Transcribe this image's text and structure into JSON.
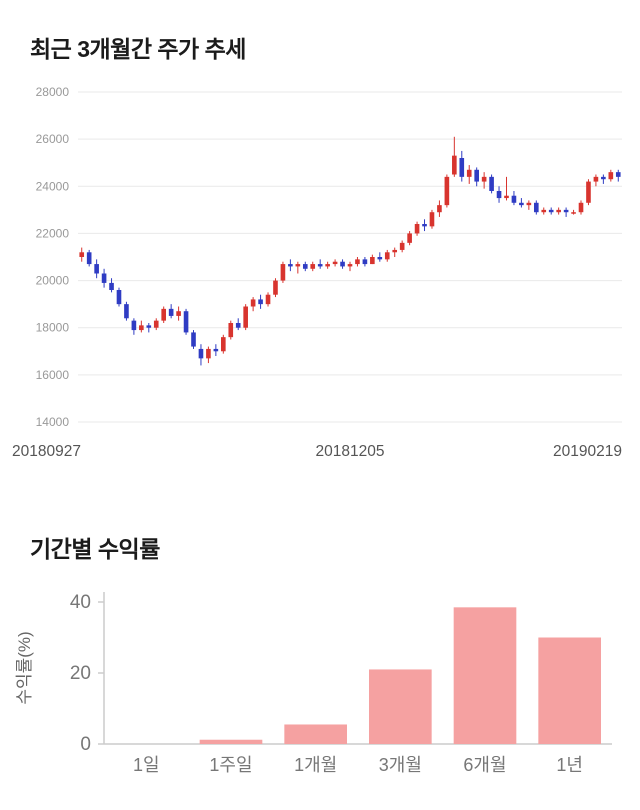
{
  "page": {
    "section1_title": "최근 3개월간 주가 추세",
    "section2_title": "기간별 수익률"
  },
  "chart_data": [
    {
      "type": "candlestick",
      "title": "최근 3개월간 주가 추세",
      "ylim": [
        14000,
        28000
      ],
      "yticks": [
        14000,
        16000,
        18000,
        20000,
        22000,
        24000,
        26000,
        28000
      ],
      "xtick_labels": [
        "20180927",
        "20181205",
        "20190219"
      ],
      "up_color": "#d8342e",
      "down_color": "#2f3cc3",
      "grid_color": "#e9e9e9",
      "ytick_label_color": "#999999",
      "xtick_label_color": "#555555",
      "candles": [
        [
          21000,
          21400,
          20800,
          21200
        ],
        [
          21200,
          21300,
          20600,
          20700
        ],
        [
          20700,
          20900,
          20100,
          20300
        ],
        [
          20300,
          20500,
          19700,
          19900
        ],
        [
          19900,
          20100,
          19500,
          19600
        ],
        [
          19600,
          19700,
          18900,
          19000
        ],
        [
          19000,
          19100,
          18300,
          18400
        ],
        [
          18300,
          18400,
          17700,
          17900
        ],
        [
          17900,
          18300,
          17800,
          18100
        ],
        [
          18100,
          18200,
          17800,
          18000
        ],
        [
          18000,
          18400,
          17900,
          18300
        ],
        [
          18300,
          18900,
          18200,
          18800
        ],
        [
          18800,
          19000,
          18400,
          18500
        ],
        [
          18500,
          18900,
          18300,
          18700
        ],
        [
          18700,
          18800,
          17700,
          17800
        ],
        [
          17800,
          17900,
          17100,
          17200
        ],
        [
          17100,
          17300,
          16400,
          16700
        ],
        [
          16700,
          17200,
          16500,
          17100
        ],
        [
          17100,
          17300,
          16800,
          17000
        ],
        [
          17000,
          17700,
          16900,
          17600
        ],
        [
          17600,
          18300,
          17500,
          18200
        ],
        [
          18200,
          18400,
          17900,
          18000
        ],
        [
          18000,
          19000,
          17900,
          18900
        ],
        [
          18900,
          19300,
          18700,
          19200
        ],
        [
          19200,
          19400,
          18800,
          19000
        ],
        [
          19000,
          19500,
          18900,
          19400
        ],
        [
          19400,
          20100,
          19300,
          20000
        ],
        [
          20000,
          20800,
          19900,
          20700
        ],
        [
          20700,
          20900,
          20400,
          20600
        ],
        [
          20600,
          20800,
          20300,
          20700
        ],
        [
          20700,
          20800,
          20400,
          20500
        ],
        [
          20500,
          20800,
          20400,
          20700
        ],
        [
          20700,
          20900,
          20500,
          20600
        ],
        [
          20600,
          20800,
          20500,
          20700
        ],
        [
          20700,
          20900,
          20600,
          20800
        ],
        [
          20800,
          20900,
          20500,
          20600
        ],
        [
          20600,
          20800,
          20400,
          20700
        ],
        [
          20700,
          21000,
          20600,
          20900
        ],
        [
          20900,
          21000,
          20600,
          20700
        ],
        [
          20700,
          21100,
          20700,
          21000
        ],
        [
          21000,
          21200,
          20800,
          20900
        ],
        [
          20900,
          21300,
          20800,
          21200
        ],
        [
          21200,
          21400,
          21000,
          21300
        ],
        [
          21300,
          21700,
          21200,
          21600
        ],
        [
          21600,
          22100,
          21500,
          22000
        ],
        [
          22000,
          22500,
          21900,
          22400
        ],
        [
          22400,
          22600,
          22100,
          22300
        ],
        [
          22300,
          23000,
          22200,
          22900
        ],
        [
          22900,
          23400,
          22700,
          23200
        ],
        [
          23200,
          24500,
          23100,
          24400
        ],
        [
          24500,
          26100,
          24400,
          25300
        ],
        [
          25200,
          25500,
          24200,
          24400
        ],
        [
          24400,
          24900,
          24100,
          24700
        ],
        [
          24700,
          24800,
          24000,
          24200
        ],
        [
          24200,
          24600,
          23900,
          24400
        ],
        [
          24400,
          24500,
          23700,
          23800
        ],
        [
          23800,
          24000,
          23300,
          23500
        ],
        [
          23500,
          24400,
          23400,
          23600
        ],
        [
          23600,
          23800,
          23200,
          23300
        ],
        [
          23300,
          23500,
          23100,
          23200
        ],
        [
          23200,
          23400,
          23000,
          23300
        ],
        [
          23300,
          23400,
          22800,
          22900
        ],
        [
          22900,
          23100,
          22800,
          23000
        ],
        [
          23000,
          23100,
          22800,
          22900
        ],
        [
          22900,
          23100,
          22800,
          23000
        ],
        [
          23000,
          23100,
          22700,
          22900
        ],
        [
          22900,
          23000,
          22800,
          22900
        ],
        [
          22900,
          23400,
          22800,
          23300
        ],
        [
          23300,
          24300,
          23200,
          24200
        ],
        [
          24200,
          24500,
          24000,
          24400
        ],
        [
          24400,
          24500,
          24100,
          24300
        ],
        [
          24300,
          24700,
          24200,
          24600
        ],
        [
          24600,
          24700,
          24200,
          24400
        ]
      ]
    },
    {
      "type": "bar",
      "title": "기간별 수익률",
      "categories": [
        "1일",
        "1주일",
        "1개월",
        "3개월",
        "6개월",
        "1년"
      ],
      "values": [
        0,
        1.2,
        5.5,
        21,
        38.5,
        30
      ],
      "ylabel": "수익률(%)",
      "yticks": [
        0,
        20,
        40
      ],
      "ylim": [
        0,
        42
      ],
      "bar_color": "#f5a1a1",
      "axis_color": "#cccccc",
      "tick_label_color": "#777777"
    }
  ]
}
